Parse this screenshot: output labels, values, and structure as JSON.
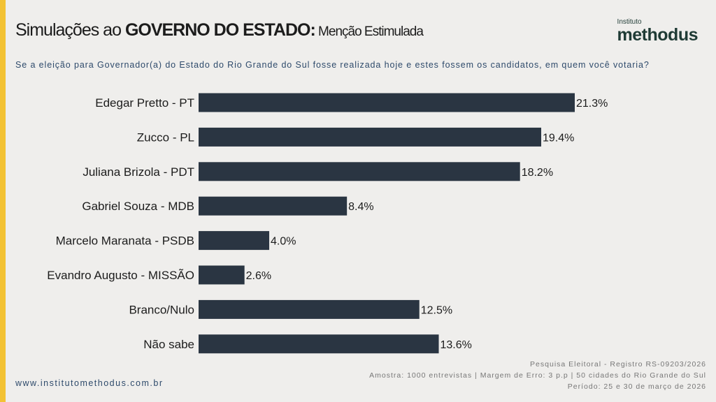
{
  "header": {
    "title_prefix": "Simulações ao ",
    "title_bold": "GOVERNO DO ESTADO:",
    "title_suffix": " Menção Estimulada",
    "question": "Se a eleição para Governador(a) do Estado do Rio Grande do Sul fosse realizada hoje e estes fossem os candidatos, em quem você votaria?"
  },
  "logo": {
    "small": "Instituto",
    "big": "methodus"
  },
  "colors": {
    "bar": "#2a3542",
    "accent": "#f3c234",
    "background": "#efeeec"
  },
  "chart_data": {
    "type": "bar",
    "orientation": "horizontal",
    "categories": [
      "Edegar Pretto - PT",
      "Zucco - PL",
      "Juliana Brizola - PDT",
      "Gabriel Souza - MDB",
      "Marcelo Maranata - PSDB",
      "Evandro Augusto - MISSÃO",
      "Branco/Nulo",
      "Não sabe"
    ],
    "values": [
      21.3,
      19.4,
      18.2,
      8.4,
      4.0,
      2.6,
      12.5,
      13.6
    ],
    "labels": [
      "21.3%",
      "19.4%",
      "18.2%",
      "8.4%",
      "4.0%",
      "2.6%",
      "12.5%",
      "13.6%"
    ],
    "unit": "%",
    "xlim": [
      0,
      25
    ],
    "grid": false
  },
  "footer": {
    "url": "www.institutomethodus.com.br",
    "notes": [
      "Pesquisa Eleitoral - Registro RS-09203/2026",
      "Amostra: 1000 entrevistas | Margem de Erro: 3 p.p | 50 cidades do Rio Grande do Sul",
      "Período: 25 e 30 de março de 2026"
    ]
  }
}
